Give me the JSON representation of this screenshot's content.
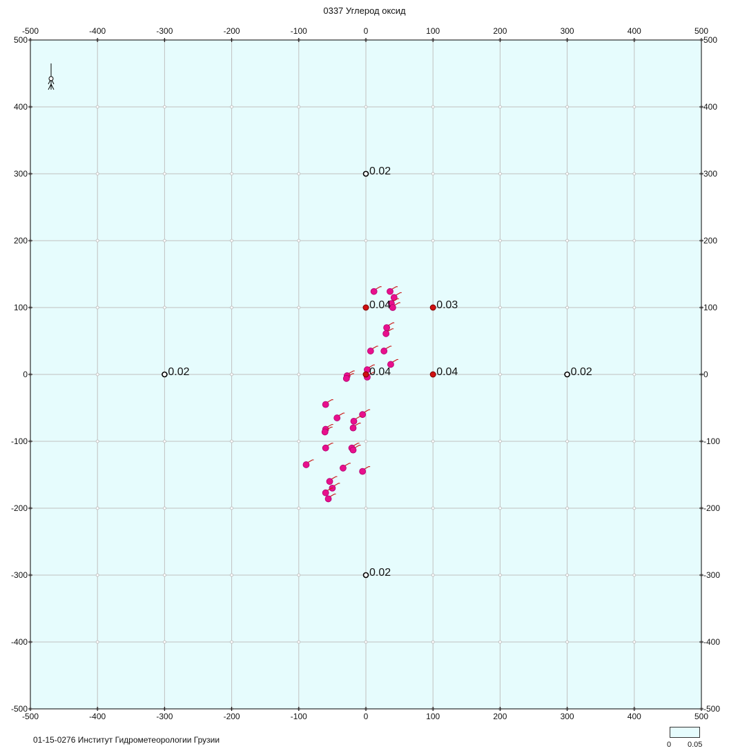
{
  "chart_data": {
    "type": "scatter",
    "title": "0337 Углерод оксид",
    "xlabel": "",
    "ylabel": "",
    "xlim": [
      -500,
      500
    ],
    "ylim": [
      -500,
      500
    ],
    "x_ticks": [
      -500,
      -400,
      -300,
      -200,
      -100,
      0,
      100,
      200,
      300,
      400,
      500
    ],
    "y_ticks": [
      -500,
      -400,
      -300,
      -200,
      -100,
      0,
      100,
      200,
      300,
      400,
      500
    ],
    "grid": true,
    "colors": {
      "background": "#e6fcfd",
      "grid": "#c0c0c0",
      "source": "#e8108c",
      "point_high": "#d01010"
    },
    "receptor_points": [
      {
        "x": 0,
        "y": 300,
        "label": "0.02",
        "kind": "open"
      },
      {
        "x": -300,
        "y": 0,
        "label": "0.02",
        "kind": "open"
      },
      {
        "x": 300,
        "y": 0,
        "label": "0.02",
        "kind": "open"
      },
      {
        "x": 0,
        "y": -300,
        "label": "0.02",
        "kind": "open"
      },
      {
        "x": 0,
        "y": 100,
        "label": "0.04",
        "kind": "filled"
      },
      {
        "x": 100,
        "y": 100,
        "label": "0.03",
        "kind": "filled"
      },
      {
        "x": 0,
        "y": 0,
        "label": "0.04",
        "kind": "filled"
      },
      {
        "x": 100,
        "y": 0,
        "label": "0.04",
        "kind": "filled"
      }
    ],
    "sources": [
      {
        "x": 12,
        "y": 124
      },
      {
        "x": 36,
        "y": 124
      },
      {
        "x": 42,
        "y": 115
      },
      {
        "x": 38,
        "y": 106
      },
      {
        "x": 40,
        "y": 100
      },
      {
        "x": 31,
        "y": 70
      },
      {
        "x": 30,
        "y": 61
      },
      {
        "x": 7,
        "y": 35
      },
      {
        "x": 27,
        "y": 35
      },
      {
        "x": 37,
        "y": 15
      },
      {
        "x": 2,
        "y": 7
      },
      {
        "x": -28,
        "y": -2
      },
      {
        "x": -29,
        "y": -6
      },
      {
        "x": 2,
        "y": -4
      },
      {
        "x": -60,
        "y": -45
      },
      {
        "x": -43,
        "y": -65
      },
      {
        "x": -5,
        "y": -60
      },
      {
        "x": -18,
        "y": -70
      },
      {
        "x": -19,
        "y": -80
      },
      {
        "x": -60,
        "y": -82
      },
      {
        "x": -61,
        "y": -86
      },
      {
        "x": -60,
        "y": -110
      },
      {
        "x": -21,
        "y": -110
      },
      {
        "x": -19,
        "y": -113
      },
      {
        "x": -89,
        "y": -135
      },
      {
        "x": -34,
        "y": -140
      },
      {
        "x": -5,
        "y": -145
      },
      {
        "x": -54,
        "y": -160
      },
      {
        "x": -50,
        "y": -170
      },
      {
        "x": -60,
        "y": -177
      },
      {
        "x": -56,
        "y": -186
      }
    ]
  },
  "footer": {
    "note": "01-15-0276 Институт Гидрометеорологии Грузии"
  },
  "legend": {
    "min_label": "0",
    "max_label": "0.05"
  }
}
